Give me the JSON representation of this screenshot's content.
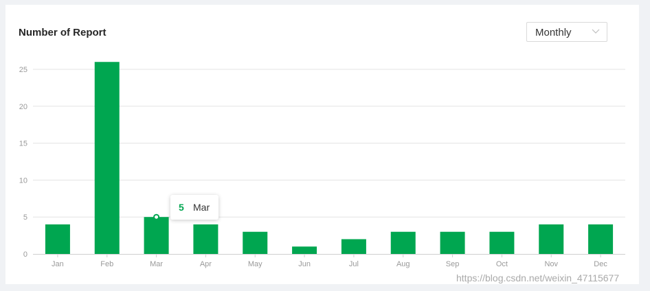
{
  "card": {
    "title": "Number of Report",
    "period_select": {
      "value": "Monthly"
    }
  },
  "colors": {
    "bar": "#00a650",
    "grid": "#e3e3e3",
    "axis": "#999999"
  },
  "chart_data": {
    "type": "bar",
    "title": "Number of Report",
    "categories": [
      "Jan",
      "Feb",
      "Mar",
      "Apr",
      "May",
      "Jun",
      "Jul",
      "Aug",
      "Sep",
      "Oct",
      "Nov",
      "Dec"
    ],
    "values": [
      4,
      26,
      5,
      4,
      3,
      1,
      2,
      3,
      3,
      3,
      4,
      4
    ],
    "yticks": [
      0,
      5,
      10,
      15,
      20,
      25
    ],
    "ylim": [
      0,
      25
    ],
    "grid": true,
    "legend": "none",
    "tooltip": {
      "value": "5",
      "category": "Mar"
    }
  },
  "watermark": "https://blog.csdn.net/weixin_47115677"
}
